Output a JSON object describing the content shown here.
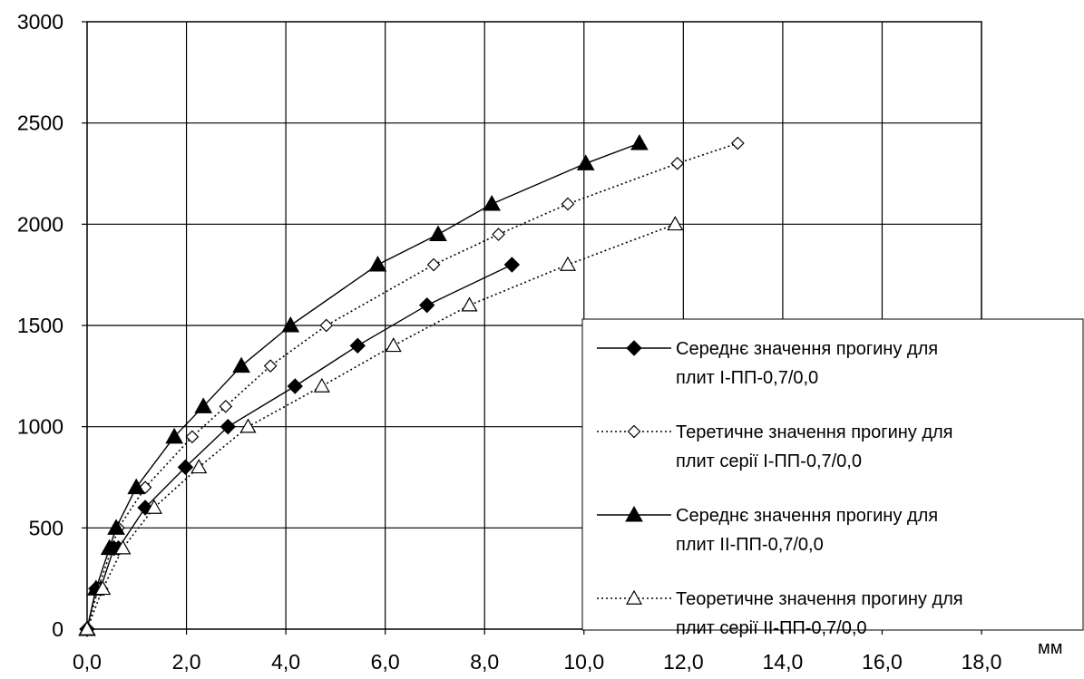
{
  "chart_data": {
    "type": "line",
    "xlabel": "",
    "ylabel": "",
    "x_unit": "мм",
    "xlim": [
      0,
      20
    ],
    "ylim": [
      0,
      3000
    ],
    "grid": true,
    "legend_placement": "bottom-right",
    "x_ticks": [
      "0,0",
      "2,0",
      "4,0",
      "6,0",
      "8,0",
      "10,0",
      "12,0",
      "14,0",
      "16,0",
      "18,0"
    ],
    "y_ticks": [
      "0",
      "500",
      "1000",
      "1500",
      "2000",
      "2500",
      "3000"
    ],
    "series": [
      {
        "name": "Середнє значення прогину для плит І-ПП-0,7/0,0",
        "legend_lines": [
          "Середнє значення прогину для",
          "плит І-ПП-0,7/0,0"
        ],
        "marker": "diamond-filled",
        "line": "solid",
        "x": [
          0.0,
          0.2,
          0.3,
          0.6,
          0.7,
          1.3,
          2.2,
          3.15,
          4.65,
          6.05,
          7.6,
          9.5
        ],
        "y": [
          0,
          200,
          200,
          400,
          400,
          600,
          800,
          1000,
          1200,
          1400,
          1600,
          1800
        ]
      },
      {
        "name": "Теретичне значення прогину для плит серії І-ПП-0,7/0,0",
        "legend_lines": [
          "Теретичне значення прогину для",
          "плит серії І-ПП-0,7/0,0"
        ],
        "marker": "diamond-open",
        "line": "dotted",
        "x": [
          0.0,
          0.25,
          0.7,
          1.3,
          2.35,
          3.1,
          4.1,
          5.35,
          7.75,
          9.2,
          10.75,
          13.2,
          14.55
        ],
        "y": [
          0,
          200,
          500,
          700,
          950,
          1100,
          1300,
          1500,
          1800,
          1950,
          2100,
          2300,
          2400
        ]
      },
      {
        "name": "Середнє значення прогину для плит ІІ-ПП-0,7/0,0",
        "legend_lines": [
          "Середнє значення прогину для",
          "плит ІІ-ПП-0,7/0,0"
        ],
        "marker": "triangle-filled",
        "line": "solid",
        "x": [
          0.0,
          0.2,
          0.5,
          0.65,
          1.1,
          1.95,
          2.6,
          3.45,
          4.55,
          6.5,
          7.85,
          9.05,
          11.15,
          12.35
        ],
        "y": [
          0,
          200,
          400,
          500,
          700,
          950,
          1100,
          1300,
          1500,
          1800,
          1950,
          2100,
          2300,
          2400
        ]
      },
      {
        "name": "Теоретичне значення прогину для плит серії ІІ-ПП-0,7/0,0",
        "legend_lines": [
          "Теоретичне значення прогину для",
          "плит серії ІІ-ПП-0,7/0,0"
        ],
        "marker": "triangle-open",
        "line": "dotted",
        "x": [
          0.0,
          0.35,
          0.8,
          1.5,
          2.5,
          3.6,
          5.25,
          6.85,
          8.55,
          10.75,
          13.15
        ],
        "y": [
          0,
          200,
          400,
          600,
          800,
          1000,
          1200,
          1400,
          1600,
          1800,
          2000
        ]
      }
    ]
  }
}
